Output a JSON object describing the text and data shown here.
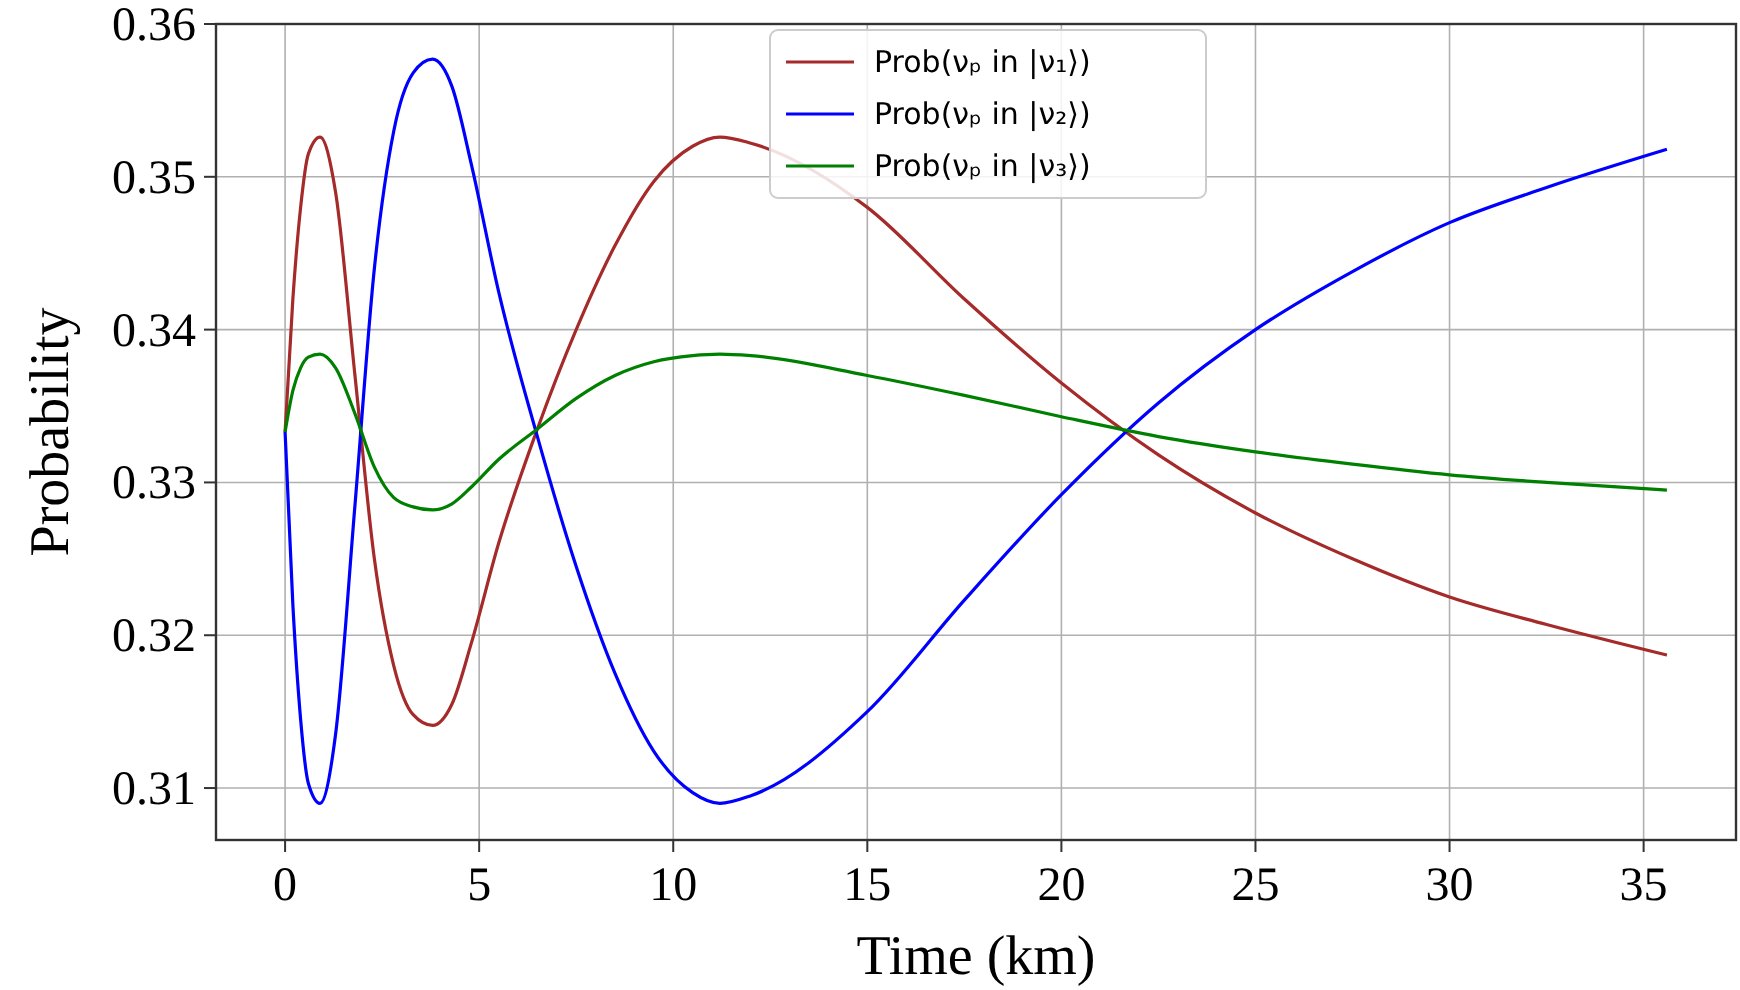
{
  "chart_data": {
    "type": "line",
    "xlabel": "Time (km)",
    "ylabel": "Probability",
    "x": [
      0,
      0.2,
      0.4,
      0.6,
      0.9,
      1.3,
      1.8,
      2.3,
      2.8,
      3.3,
      3.8,
      4.3,
      4.8,
      5.5,
      6.5,
      7.5,
      8.5,
      9.5,
      10.5,
      11.2,
      12,
      15,
      17.5,
      20,
      22.5,
      25,
      27.5,
      30,
      32.5,
      35.6
    ],
    "series": [
      {
        "name": "Prob(νₚ in |ν₁⟩)",
        "color": "#a52a2a",
        "values": [
          0.3333,
          0.342,
          0.348,
          0.3515,
          0.3526,
          0.349,
          0.337,
          0.325,
          0.318,
          0.3148,
          0.3141,
          0.3155,
          0.3195,
          0.326,
          0.3335,
          0.34,
          0.3455,
          0.3497,
          0.352,
          0.3526,
          0.3522,
          0.348,
          0.342,
          0.3365,
          0.3318,
          0.328,
          0.325,
          0.3225,
          0.3207,
          0.3187
        ]
      },
      {
        "name": "Prob(νₚ in |ν₂⟩)",
        "color": "#0000ff",
        "values": [
          0.3333,
          0.322,
          0.3145,
          0.3103,
          0.309,
          0.3135,
          0.3285,
          0.344,
          0.353,
          0.3568,
          0.3577,
          0.3559,
          0.3508,
          0.3425,
          0.333,
          0.3245,
          0.3175,
          0.3124,
          0.3097,
          0.309,
          0.3095,
          0.315,
          0.3223,
          0.3292,
          0.3352,
          0.34,
          0.3438,
          0.347,
          0.3493,
          0.3518
        ]
      },
      {
        "name": "Prob(νₚ in |ν₃⟩)",
        "color": "#008000",
        "values": [
          0.3333,
          0.336,
          0.3375,
          0.3382,
          0.3384,
          0.3375,
          0.3345,
          0.331,
          0.329,
          0.3284,
          0.3282,
          0.3286,
          0.3297,
          0.3315,
          0.3335,
          0.3355,
          0.337,
          0.3379,
          0.3383,
          0.3384,
          0.3383,
          0.337,
          0.3357,
          0.3343,
          0.333,
          0.332,
          0.3312,
          0.3305,
          0.33,
          0.3295
        ]
      }
    ],
    "xlim": [
      -1.78,
      37.38
    ],
    "xticks": [
      0,
      5,
      10,
      15,
      20,
      25,
      30,
      35
    ],
    "ylim": [
      0.3066,
      0.36
    ],
    "yticks": [
      0.31,
      0.32,
      0.33,
      0.34,
      0.35,
      0.36
    ],
    "grid": true,
    "legend": "top",
    "line_style": "solid",
    "marker": "none"
  }
}
